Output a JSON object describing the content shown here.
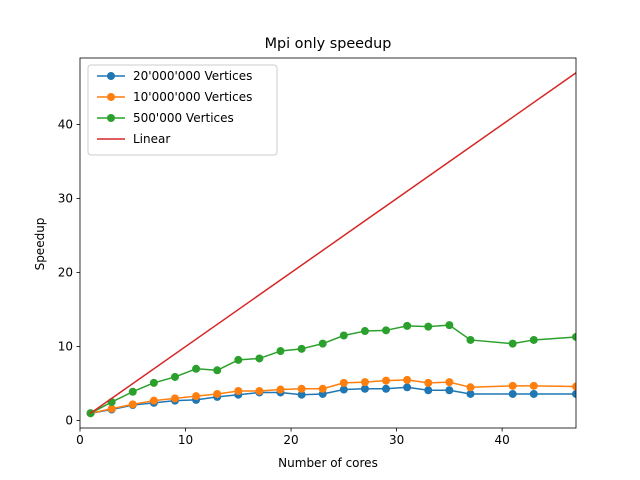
{
  "chart_data": {
    "type": "line",
    "title": "Mpi only speedup",
    "xlabel": "Number of cores",
    "ylabel": "Speedup",
    "xlim": [
      0,
      47
    ],
    "ylim": [
      -1.0,
      49.0
    ],
    "xticks": [
      0,
      10,
      20,
      30,
      40
    ],
    "yticks": [
      0,
      10,
      20,
      30,
      40
    ],
    "grid": false,
    "legend_position": "top-left",
    "series": [
      {
        "name": "20'000'000 Vertices",
        "color": "#1f77b4",
        "marker": true,
        "x": [
          1,
          3,
          5,
          7,
          9,
          11,
          13,
          15,
          17,
          19,
          21,
          23,
          25,
          27,
          29,
          31,
          33,
          35,
          37,
          41,
          43,
          47
        ],
        "y": [
          1.0,
          1.5,
          2.1,
          2.4,
          2.7,
          2.8,
          3.2,
          3.5,
          3.8,
          3.8,
          3.5,
          3.6,
          4.2,
          4.3,
          4.3,
          4.5,
          4.1,
          4.1,
          3.6,
          3.6,
          3.6,
          3.6
        ]
      },
      {
        "name": "10'000'000 Vertices",
        "color": "#ff7f0e",
        "marker": true,
        "x": [
          1,
          3,
          5,
          7,
          9,
          11,
          13,
          15,
          17,
          19,
          21,
          23,
          25,
          27,
          29,
          31,
          33,
          35,
          37,
          41,
          43,
          47
        ],
        "y": [
          1.0,
          1.6,
          2.2,
          2.7,
          3.0,
          3.3,
          3.6,
          4.0,
          4.0,
          4.2,
          4.3,
          4.3,
          5.1,
          5.2,
          5.4,
          5.5,
          5.1,
          5.2,
          4.5,
          4.7,
          4.7,
          4.6
        ]
      },
      {
        "name": "500'000 Vertices",
        "color": "#2ca02c",
        "marker": true,
        "x": [
          1,
          3,
          5,
          7,
          9,
          11,
          13,
          15,
          17,
          19,
          21,
          23,
          25,
          27,
          29,
          31,
          33,
          35,
          37,
          41,
          43,
          47
        ],
        "y": [
          1.0,
          2.5,
          3.9,
          5.1,
          5.9,
          7.0,
          6.8,
          8.2,
          8.4,
          9.4,
          9.7,
          10.4,
          11.5,
          12.1,
          12.2,
          12.8,
          12.7,
          12.9,
          10.9,
          10.4,
          10.9,
          11.3
        ]
      },
      {
        "name": "Linear",
        "color": "#d62728",
        "marker": false,
        "x": [
          1,
          47
        ],
        "y": [
          1,
          47
        ]
      }
    ]
  }
}
